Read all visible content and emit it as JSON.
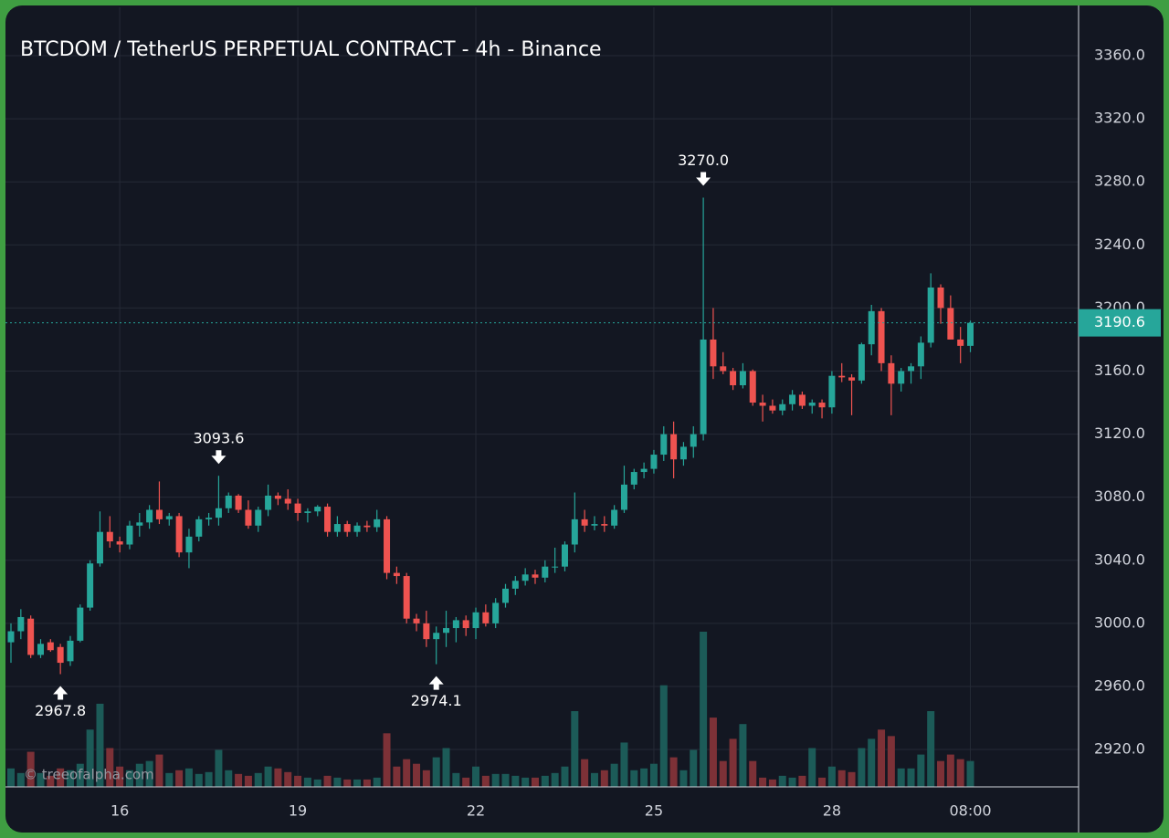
{
  "chart_data": {
    "type": "candlestick",
    "title": "BTCDOM / TetherUS PERPETUAL CONTRACT - 4h - Binance",
    "watermark": "© treeofalpha.com",
    "categories": [
      null,
      null,
      null,
      null,
      null,
      null,
      null,
      null,
      null,
      null,
      null,
      "16",
      null,
      null,
      null,
      null,
      null,
      null,
      null,
      null,
      null,
      null,
      null,
      null,
      null,
      null,
      null,
      null,
      null,
      "19",
      null,
      null,
      null,
      null,
      null,
      null,
      null,
      null,
      null,
      null,
      null,
      null,
      null,
      null,
      null,
      null,
      null,
      "22",
      null,
      null,
      null,
      null,
      null,
      null,
      null,
      null,
      null,
      null,
      null,
      null,
      null,
      null,
      null,
      null,
      null,
      "25",
      null,
      null,
      null,
      null,
      null,
      null,
      null,
      null,
      null,
      null,
      null,
      null,
      null,
      null,
      null,
      null,
      null,
      "28",
      null,
      null,
      null,
      null,
      null,
      null,
      null,
      null,
      null,
      null,
      null,
      null,
      null,
      "08:00"
    ],
    "open": [
      2988,
      2995,
      3003,
      2980,
      2988,
      2985,
      2976,
      2989,
      3010,
      3038,
      3058,
      3052,
      3050,
      3062,
      3064,
      3072,
      3066,
      3068,
      3045,
      3055,
      3066,
      3067,
      3073,
      3081,
      3072,
      3062,
      3072,
      3081,
      3079,
      3076,
      3070,
      3071,
      3074,
      3058,
      3063,
      3058,
      3062,
      3061,
      3066,
      3032,
      3030,
      3003,
      3000,
      2990,
      2994,
      2997,
      3002,
      2997,
      3007,
      3000,
      3013,
      3022,
      3027,
      3031,
      3029,
      3036,
      3036,
      3050,
      3066,
      3062,
      3063,
      3062,
      3072,
      3088,
      3096,
      3098,
      3107,
      3120,
      3104,
      3112,
      3120,
      3180,
      3163,
      3160,
      3151,
      3160,
      3140,
      3138,
      3135,
      3139,
      3145,
      3138,
      3140,
      3137,
      3157,
      3156,
      3154,
      3177,
      3198,
      3165,
      3152,
      3160,
      3163,
      3178,
      3213,
      3200,
      3180,
      3176
    ],
    "high": [
      3000,
      3009,
      3005,
      2990,
      2990,
      2987,
      2992,
      3012,
      3040,
      3071,
      3068,
      3055,
      3065,
      3070,
      3075,
      3090,
      3070,
      3070,
      3060,
      3068,
      3070,
      3093.6,
      3083,
      3082,
      3078,
      3074,
      3088,
      3083,
      3085,
      3079,
      3073,
      3075,
      3076,
      3068,
      3065,
      3064,
      3065,
      3072,
      3068,
      3036,
      3032,
      3006,
      3008,
      2998,
      3008,
      3004,
      3005,
      3010,
      3012,
      3016,
      3025,
      3030,
      3035,
      3034,
      3040,
      3048,
      3052,
      3083,
      3072,
      3068,
      3068,
      3075,
      3100,
      3098,
      3102,
      3110,
      3125,
      3128,
      3115,
      3125,
      3270,
      3200,
      3172,
      3162,
      3165,
      3161,
      3145,
      3142,
      3142,
      3148,
      3147,
      3142,
      3142,
      3160,
      3165,
      3158,
      3178,
      3202,
      3200,
      3170,
      3162,
      3165,
      3182,
      3222,
      3215,
      3208,
      3188,
      3192
    ],
    "low": [
      2975,
      2990,
      2978,
      2978,
      2982,
      2967.8,
      2973,
      2988,
      3008,
      3036,
      3048,
      3045,
      3047,
      3055,
      3060,
      3063,
      3062,
      3042,
      3035,
      3052,
      3062,
      3062,
      3070,
      3070,
      3060,
      3058,
      3068,
      3075,
      3072,
      3065,
      3064,
      3068,
      3055,
      3055,
      3055,
      3055,
      3058,
      3058,
      3028,
      3025,
      3000,
      2995,
      2985,
      2974.1,
      2985,
      2988,
      2992,
      2990,
      2998,
      2997,
      3010,
      3018,
      3024,
      3025,
      3026,
      3032,
      3033,
      3045,
      3058,
      3059,
      3058,
      3060,
      3070,
      3085,
      3092,
      3095,
      3103,
      3092,
      3100,
      3105,
      3116,
      3155,
      3158,
      3148,
      3149,
      3138,
      3128,
      3133,
      3132,
      3135,
      3136,
      3133,
      3130,
      3133,
      3153,
      3132,
      3152,
      3170,
      3160,
      3132,
      3147,
      3152,
      3155,
      3175,
      3190,
      3180,
      3165,
      3172
    ],
    "close": [
      2995,
      3004,
      2980,
      2987,
      2983,
      2975,
      2989,
      3010,
      3038,
      3058,
      3052,
      3050,
      3062,
      3064,
      3072,
      3066,
      3068,
      3045,
      3055,
      3066,
      3067,
      3073,
      3081,
      3072,
      3062,
      3072,
      3081,
      3079,
      3076,
      3070,
      3071,
      3074,
      3058,
      3063,
      3058,
      3062,
      3061,
      3066,
      3032,
      3030,
      3003,
      3000,
      2990,
      2994,
      2997,
      3002,
      2997,
      3007,
      3000,
      3013,
      3022,
      3027,
      3031,
      3029,
      3036,
      3036,
      3050,
      3066,
      3062,
      3063,
      3062,
      3072,
      3088,
      3096,
      3098,
      3107,
      3120,
      3104,
      3112,
      3120,
      3180,
      3163,
      3160,
      3151,
      3160,
      3140,
      3138,
      3135,
      3139,
      3145,
      3138,
      3140,
      3137,
      3157,
      3156,
      3154,
      3177,
      3198,
      3165,
      3152,
      3160,
      3163,
      3178,
      3213,
      3200,
      3180,
      3176,
      3190.6
    ],
    "volume": [
      20,
      15,
      38,
      15,
      12,
      20,
      18,
      25,
      62,
      90,
      42,
      22,
      18,
      25,
      28,
      35,
      15,
      18,
      20,
      14,
      16,
      40,
      18,
      14,
      12,
      15,
      22,
      20,
      16,
      12,
      10,
      8,
      12,
      10,
      8,
      8,
      8,
      10,
      58,
      22,
      30,
      25,
      18,
      32,
      42,
      15,
      10,
      22,
      12,
      14,
      14,
      12,
      10,
      10,
      12,
      15,
      22,
      82,
      30,
      15,
      18,
      25,
      48,
      18,
      20,
      25,
      110,
      32,
      18,
      40,
      168,
      75,
      28,
      52,
      68,
      28,
      10,
      8,
      12,
      10,
      12,
      42,
      10,
      22,
      18,
      16,
      42,
      52,
      62,
      55,
      20,
      20,
      35,
      82,
      28,
      35,
      30,
      28
    ],
    "up_color": "#26a69a",
    "down_color": "#ef5350",
    "up_volume_color": "#1c5b58",
    "down_volume_color": "#7d3137",
    "ylim": [
      2896.3,
      3390.7
    ],
    "yticks": [
      {
        "value": 2920,
        "label": "2920.0"
      },
      {
        "value": 2960,
        "label": "2960.0"
      },
      {
        "value": 3000,
        "label": "3000.0"
      },
      {
        "value": 3040,
        "label": "3040.0"
      },
      {
        "value": 3080,
        "label": "3080.0"
      },
      {
        "value": 3120,
        "label": "3120.0"
      },
      {
        "value": 3160,
        "label": "3160.0"
      },
      {
        "value": 3200,
        "label": "3200.0"
      },
      {
        "value": 3240,
        "label": "3240.0"
      },
      {
        "value": 3280,
        "label": "3280.0"
      },
      {
        "value": 3320,
        "label": "3320.0"
      },
      {
        "value": 3360,
        "label": "3360.0"
      }
    ],
    "grid": true,
    "last_price": {
      "value": 3190.6,
      "label": "3190.6",
      "color": "#26a69a"
    },
    "annotations": [
      {
        "at": 5,
        "value": 2967.8,
        "label": "2967.8",
        "side": "low"
      },
      {
        "at": 21,
        "value": 3093.6,
        "label": "3093.6",
        "side": "high"
      },
      {
        "at": 43,
        "value": 2974.1,
        "label": "2974.1",
        "side": "low"
      },
      {
        "at": 70,
        "value": 3270.0,
        "label": "3270.0",
        "side": "high"
      }
    ]
  }
}
